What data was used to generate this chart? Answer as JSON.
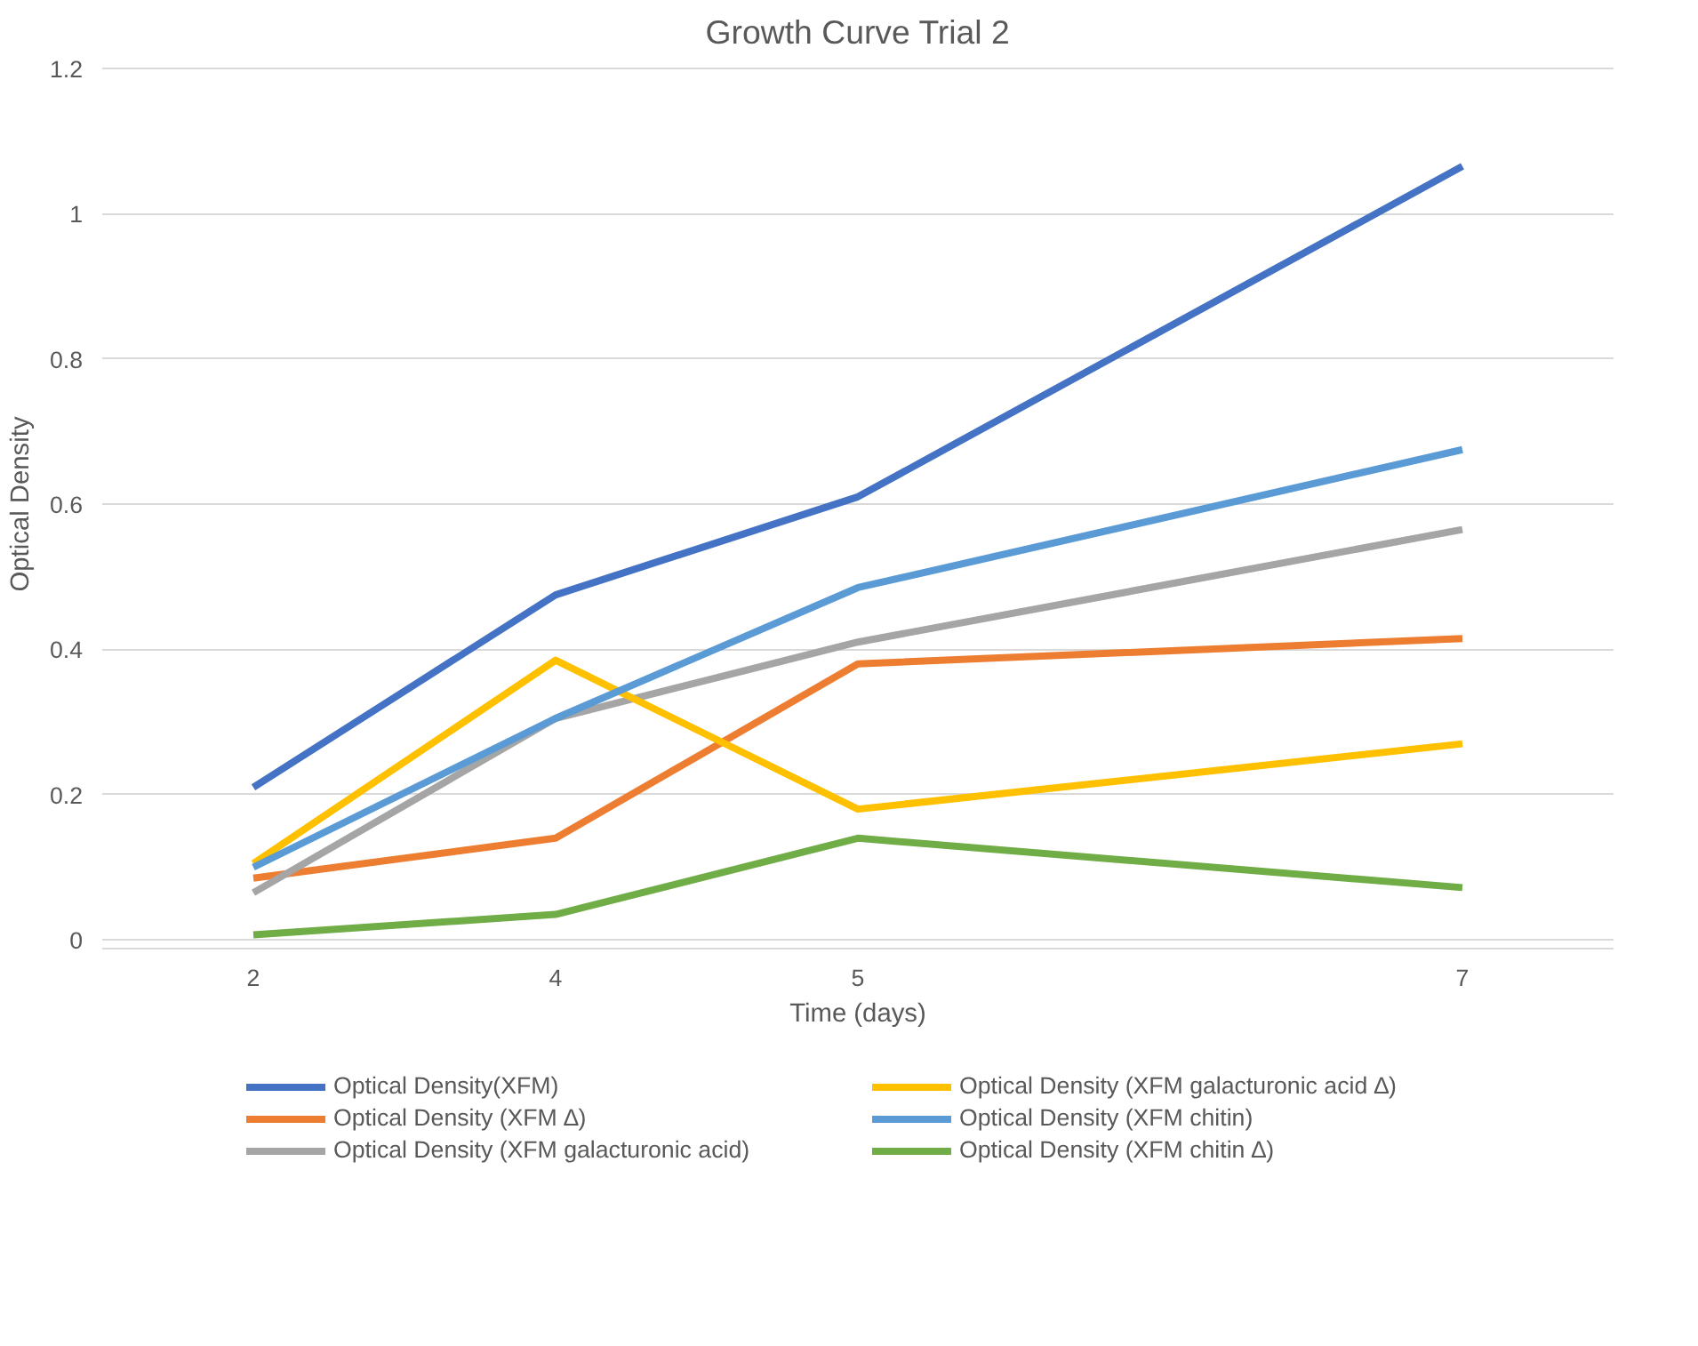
{
  "chart_data": {
    "type": "line",
    "title": "Growth Curve Trial 2",
    "xlabel": "Time (days)",
    "ylabel": "Optical Density",
    "categories": [
      "2",
      "4",
      "5",
      null,
      "7"
    ],
    "series": [
      {
        "name": "Optical Density(XFM)",
        "color": "#4472c4",
        "values": [
          0.21,
          0.475,
          0.61,
          null,
          1.065
        ]
      },
      {
        "name": "Optical Density (XFM ∆)",
        "color": "#ed7d31",
        "values": [
          0.085,
          0.14,
          0.38,
          null,
          0.415
        ]
      },
      {
        "name": "Optical Density (XFM galacturonic acid)",
        "color": "#a5a5a5",
        "values": [
          0.065,
          0.305,
          0.41,
          null,
          0.565
        ]
      },
      {
        "name": "Optical Density (XFM galacturonic acid ∆)",
        "color": "#ffc000",
        "values": [
          0.105,
          0.385,
          0.18,
          null,
          0.27
        ]
      },
      {
        "name": "Optical Density (XFM chitin)",
        "color": "#5b9bd5",
        "values": [
          0.1,
          0.305,
          0.485,
          null,
          0.675
        ]
      },
      {
        "name": "Optical Density (XFM chitin ∆)",
        "color": "#70ad47",
        "values": [
          0.007,
          0.035,
          0.14,
          null,
          0.072
        ]
      }
    ],
    "ylim": [
      0,
      1.2
    ],
    "yticks": [
      0,
      0.2,
      0.4,
      0.6,
      0.8,
      1,
      1.2
    ],
    "grid": "y",
    "legend": "bottom"
  }
}
